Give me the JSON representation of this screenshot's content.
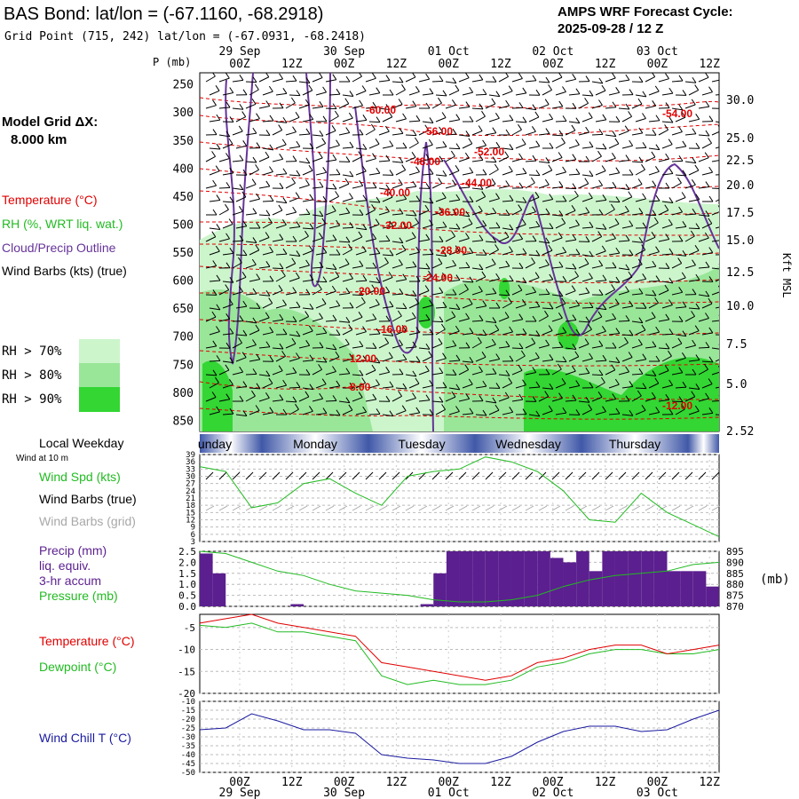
{
  "header": {
    "title": "BAS Bond:  lat/lon = (-67.1160, -68.2918)",
    "subtitle": "Grid Point (715, 242) lat/lon = (-67.0931, -68.2418)",
    "cycle_line1": "AMPS WRF Forecast Cycle:",
    "cycle_line2": "2025-09-28 / 12  Z"
  },
  "time_axis": {
    "hour_labels": [
      "00Z",
      "12Z",
      "00Z",
      "12Z",
      "00Z",
      "12Z",
      "00Z",
      "12Z",
      "00Z",
      "12Z"
    ],
    "date_labels": [
      "29 Sep",
      "30 Sep",
      "01 Oct",
      "02 Oct",
      "03 Oct"
    ],
    "weekdays": [
      "unday",
      "Monday",
      "Tuesday",
      "Wednesday",
      "Thursday"
    ]
  },
  "left_legend": {
    "grid_label": "Model Grid ΔX:",
    "grid_value": "8.000 km",
    "temperature": "Temperature (°C)",
    "rh": "RH (%, WRT liq. wat.)",
    "cloud": "Cloud/Precip Outline",
    "wind": "Wind Barbs (kts) (true)",
    "rh70": "RH > 70%",
    "rh80": "RH > 80%",
    "rh90": "RH > 90%",
    "local_weekday": "Local Weekday",
    "wind_10m": "Wind at 10 m",
    "wind_spd": "Wind Spd (kts)",
    "wind_barbs_true": "Wind Barbs (true)",
    "wind_barbs_grid": "Wind Barbs (grid)",
    "precip1": "Precip (mm)",
    "precip2": "liq. equiv.",
    "precip3": "3-hr accum",
    "pressure": "Pressure (mb)",
    "temp2": "Temperature (°C)",
    "dewpoint": "Dewpoint (°C)",
    "windchill": "Wind Chill T (°C)",
    "p_unit": "P (mb)",
    "kft_unit": "Kft MSL",
    "mb_unit": "(mb)"
  },
  "colors": {
    "temperature": "#e00000",
    "rh": "#22bb22",
    "cloud": "#663399",
    "wind": "#000000",
    "wind_grid": "#a8a8a8",
    "windchill": "#1a1aa0",
    "rh70": "#ccf5cc",
    "rh80": "#99e699",
    "rh90": "#33d633",
    "precip": "#5b1f8f"
  },
  "chart_data": [
    {
      "type": "heatmap",
      "name": "upper-air-cross-section",
      "x_hours": [
        0,
        120
      ],
      "y_pressure_mb": [
        250,
        300,
        350,
        400,
        450,
        500,
        550,
        600,
        650,
        700,
        750,
        800,
        850
      ],
      "y_height_kft": [
        "30.0",
        "25.0",
        "22.5",
        "20.0",
        "17.5",
        "15.0",
        "12.5",
        "10.0",
        "7.5",
        "5.0",
        "2.52"
      ],
      "temperature_contour_labels": [
        "-60.00",
        "-56.00",
        "-54.00",
        "-52.00",
        "-48.00",
        "-44.00",
        "-40.00",
        "-36.00",
        "-32.00",
        "-28.00",
        "-24.00",
        "-20.00",
        "-16.00",
        "-12.00",
        "-12.00",
        "-8.00"
      ]
    },
    {
      "type": "line",
      "name": "wind-speed",
      "yticks": [
        "39",
        "36",
        "33",
        "30",
        "27",
        "24",
        "21",
        "18",
        "15",
        "12",
        "9",
        "6",
        "3"
      ],
      "x": [
        0,
        6,
        12,
        18,
        24,
        30,
        36,
        42,
        48,
        54,
        60,
        66,
        72,
        78,
        84,
        90,
        96,
        102,
        108,
        114,
        120
      ],
      "values": [
        34,
        32,
        17,
        19,
        27,
        29,
        23,
        18,
        30,
        32,
        33,
        38,
        36,
        32,
        24,
        12,
        11,
        23,
        15,
        10,
        5
      ],
      "ylim": [
        3,
        39
      ]
    },
    {
      "type": "bar",
      "name": "precip-pressure",
      "precip_yticks": [
        "2.5",
        "2.0",
        "1.5",
        "1.0",
        "0.5",
        "0.0"
      ],
      "pressure_yticks": [
        "895",
        "890",
        "885",
        "880",
        "875",
        "870"
      ],
      "precip_x": [
        0,
        3,
        6,
        9,
        12,
        15,
        18,
        21,
        24,
        27,
        30,
        33,
        36,
        39,
        42,
        45,
        48,
        51,
        54,
        57,
        60,
        63,
        66,
        69,
        72,
        75,
        78,
        81,
        84,
        87,
        90,
        93,
        96,
        99,
        102,
        105,
        108,
        111,
        114,
        117
      ],
      "precip_values": [
        2.4,
        1.5,
        0,
        0,
        0,
        0,
        0,
        0.1,
        0,
        0,
        0,
        0,
        0,
        0,
        0,
        0,
        0,
        0.1,
        1.5,
        2.5,
        2.5,
        2.5,
        2.5,
        2.5,
        2.5,
        2.5,
        2.5,
        2.2,
        2.0,
        2.5,
        1.6,
        2.5,
        2.5,
        2.5,
        2.5,
        2.5,
        1.6,
        1.6,
        1.6,
        0.9
      ],
      "pressure_x": [
        0,
        6,
        12,
        18,
        24,
        30,
        36,
        42,
        48,
        54,
        60,
        66,
        72,
        78,
        84,
        90,
        96,
        102,
        108,
        114,
        120
      ],
      "pressure_values": [
        895,
        894,
        890,
        886,
        884,
        880,
        877,
        876,
        875,
        873,
        872,
        872,
        873,
        875,
        879,
        882,
        884,
        885,
        886,
        889,
        890
      ],
      "precip_ylim": [
        0,
        2.5
      ],
      "pressure_ylim": [
        870,
        895
      ]
    },
    {
      "type": "line",
      "name": "temperature-dewpoint",
      "yticks": [
        "-5",
        "-10",
        "-15",
        "-20"
      ],
      "x": [
        0,
        6,
        12,
        18,
        24,
        30,
        36,
        42,
        48,
        54,
        60,
        66,
        72,
        78,
        84,
        90,
        96,
        102,
        108,
        114,
        120
      ],
      "series": [
        {
          "name": "Temperature",
          "values": [
            -4,
            -3,
            -2,
            -4,
            -5,
            -6,
            -7,
            -13,
            -14,
            -15,
            -16,
            -17,
            -16,
            -13,
            -12,
            -10,
            -9,
            -9,
            -11,
            -10,
            -9
          ]
        },
        {
          "name": "Dewpoint",
          "values": [
            -4.5,
            -5,
            -4,
            -6,
            -6,
            -7,
            -8,
            -16,
            -18,
            -17,
            -18,
            -18,
            -17,
            -14,
            -13,
            -11,
            -10,
            -10,
            -11,
            -11,
            -10
          ]
        }
      ],
      "ylim": [
        -20,
        -2
      ]
    },
    {
      "type": "line",
      "name": "wind-chill",
      "yticks": [
        "-10",
        "-15",
        "-20",
        "-25",
        "-30",
        "-35",
        "-40",
        "-45",
        "-50"
      ],
      "x": [
        0,
        6,
        12,
        18,
        24,
        30,
        36,
        42,
        48,
        54,
        60,
        66,
        72,
        78,
        84,
        90,
        96,
        102,
        108,
        114,
        120
      ],
      "values": [
        -26,
        -25,
        -17,
        -21,
        -26,
        -26,
        -28,
        -40,
        -42,
        -43,
        -45,
        -45,
        -41,
        -33,
        -27,
        -24,
        -24,
        -27,
        -26,
        -20,
        -15
      ],
      "ylim": [
        -50,
        -10
      ]
    }
  ]
}
